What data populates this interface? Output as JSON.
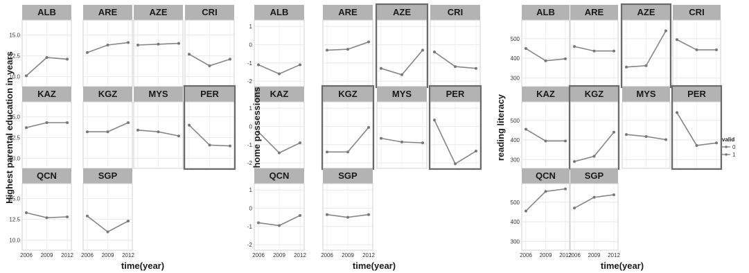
{
  "chart_data": [
    {
      "type": "line",
      "xlabel": "time(year)",
      "ylabel": "Highest parental education in years",
      "x": [
        2006,
        2009,
        2012
      ],
      "xticks": [
        "2006",
        "2009",
        "2012"
      ],
      "ylim": [
        8.8,
        16.8
      ],
      "yticks": [
        "10.0",
        "12.5",
        "15.0"
      ],
      "panels": [
        {
          "country": "ALB",
          "values": [
            10.1,
            12.3,
            12.1
          ],
          "highlighted": false
        },
        {
          "country": "ARE",
          "values": [
            12.9,
            13.8,
            14.1
          ],
          "highlighted": false
        },
        {
          "country": "AZE",
          "values": [
            13.8,
            13.9,
            14.0
          ],
          "highlighted": false
        },
        {
          "country": "CRI",
          "values": [
            12.7,
            11.3,
            12.1
          ],
          "highlighted": false
        },
        {
          "country": "KAZ",
          "values": [
            13.7,
            14.3,
            14.3
          ],
          "highlighted": false
        },
        {
          "country": "KGZ",
          "values": [
            13.2,
            13.2,
            14.3
          ],
          "highlighted": false
        },
        {
          "country": "MYS",
          "values": [
            13.4,
            13.2,
            12.7
          ],
          "highlighted": false
        },
        {
          "country": "PER",
          "values": [
            14.0,
            11.6,
            11.5
          ],
          "highlighted": true
        },
        {
          "country": "QCN",
          "values": [
            13.3,
            12.7,
            12.8
          ],
          "highlighted": false
        },
        {
          "country": "SGP",
          "values": [
            12.9,
            11.0,
            12.3
          ],
          "highlighted": false
        }
      ]
    },
    {
      "type": "line",
      "xlabel": "time(year)",
      "ylabel": "home possessions",
      "x": [
        2006,
        2009,
        2012
      ],
      "xticks": [
        "2006",
        "2009",
        "2012"
      ],
      "ylim": [
        -2.3,
        1.35
      ],
      "yticks": [
        "-2",
        "-1",
        "0",
        "1"
      ],
      "panels": [
        {
          "country": "ALB",
          "values": [
            -1.1,
            -1.6,
            -1.1
          ],
          "highlighted": false
        },
        {
          "country": "ARE",
          "values": [
            -0.3,
            -0.25,
            0.15
          ],
          "highlighted": false
        },
        {
          "country": "AZE",
          "values": [
            -1.3,
            -1.65,
            -0.3
          ],
          "highlighted": true
        },
        {
          "country": "CRI",
          "values": [
            -0.4,
            -1.2,
            -1.3
          ],
          "highlighted": false
        },
        {
          "country": "KAZ",
          "values": [
            -0.3,
            -1.45,
            -0.9
          ],
          "highlighted": false
        },
        {
          "country": "KGZ",
          "values": [
            -1.4,
            -1.4,
            -0.05
          ],
          "highlighted": true
        },
        {
          "country": "MYS",
          "values": [
            -0.65,
            -0.85,
            -0.9
          ],
          "highlighted": false
        },
        {
          "country": "PER",
          "values": [
            0.35,
            -2.05,
            -1.35
          ],
          "highlighted": true
        },
        {
          "country": "QCN",
          "values": [
            -0.8,
            -0.95,
            -0.4
          ],
          "highlighted": false
        },
        {
          "country": "SGP",
          "values": [
            -0.35,
            -0.5,
            -0.35
          ],
          "highlighted": false
        }
      ]
    },
    {
      "type": "line",
      "xlabel": "time(year)",
      "ylabel": "reading literacy",
      "x": [
        2006,
        2009,
        2012
      ],
      "xticks": [
        "2006",
        "2009",
        "2012"
      ],
      "ylim": [
        255,
        595
      ],
      "yticks": [
        "300",
        "400",
        "500"
      ],
      "legend": {
        "title": "valid",
        "entries": [
          "0",
          "1"
        ],
        "position": "right"
      },
      "panels": [
        {
          "country": "ALB",
          "values": [
            450,
            387,
            397
          ],
          "highlighted": false
        },
        {
          "country": "ARE",
          "values": [
            460,
            437,
            437
          ],
          "highlighted": false
        },
        {
          "country": "AZE",
          "values": [
            355,
            362,
            540
          ],
          "highlighted": true
        },
        {
          "country": "CRI",
          "values": [
            495,
            443,
            443
          ],
          "highlighted": false
        },
        {
          "country": "KAZ",
          "values": [
            455,
            395,
            395
          ],
          "highlighted": false
        },
        {
          "country": "KGZ",
          "values": [
            290,
            317,
            440
          ],
          "highlighted": true
        },
        {
          "country": "MYS",
          "values": [
            428,
            418,
            402
          ],
          "highlighted": false
        },
        {
          "country": "PER",
          "values": [
            540,
            372,
            385
          ],
          "highlighted": true
        },
        {
          "country": "QCN",
          "values": [
            455,
            555,
            568
          ],
          "highlighted": false
        },
        {
          "country": "SGP",
          "values": [
            470,
            525,
            538
          ],
          "highlighted": false
        }
      ]
    }
  ]
}
